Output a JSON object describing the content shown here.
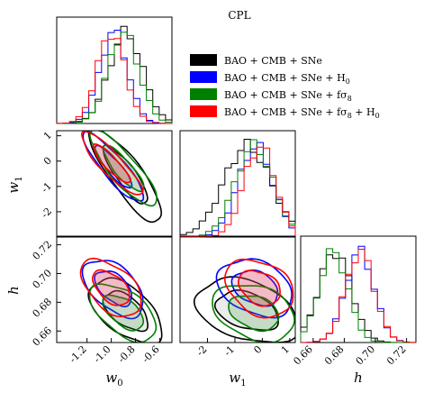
{
  "chart_data": {
    "type": "corner-plot",
    "title": "CPL",
    "parameters": [
      {
        "key": "w0",
        "label": "w0",
        "range": [
          -1.45,
          -0.5
        ],
        "ticks": [
          "-1.2",
          "-1.0",
          "-0.8",
          "-0.6"
        ],
        "tick_values": [
          -1.2,
          -1.0,
          -0.8,
          -0.6
        ]
      },
      {
        "key": "w1",
        "label": "w1",
        "range": [
          -3,
          1.2
        ],
        "ticks": [
          "-2",
          "-1",
          "0",
          "1"
        ],
        "tick_values": [
          -2,
          -1,
          0,
          1
        ]
      },
      {
        "key": "h",
        "label": "h",
        "range": [
          0.652,
          0.726
        ],
        "ticks": [
          "0.66",
          "0.68",
          "0.70",
          "0.72"
        ],
        "tick_values": [
          0.66,
          0.68,
          0.7,
          0.72
        ]
      }
    ],
    "axis_labels": {
      "w0": "w",
      "w0_sub": "0",
      "w1": "w",
      "w1_sub": "1",
      "h": "h"
    },
    "legend": {
      "placement": "top-right",
      "entries": [
        {
          "label": "BAO + CMB + SNe",
          "color": "#000000"
        },
        {
          "label": "BAO + CMB + SNe + H",
          "sub": "0",
          "color": "#0000ff"
        },
        {
          "label": "BAO + CMB + SNe + fσ",
          "sub": "8",
          "color": "#008000"
        },
        {
          "label": "BAO + CMB + SNe + fσ",
          "sub": "8",
          "extra": " + H",
          "extra_sub": "0",
          "color": "#ff0000"
        }
      ]
    },
    "series": [
      {
        "name": "BAO + CMB + SNe",
        "color": "#000000",
        "mean": {
          "w0": -0.88,
          "w1": -0.55,
          "h": 0.674
        },
        "sd": {
          "w0": 0.12,
          "w1": 0.75,
          "h": 0.009
        },
        "corr": {
          "w0_w1": -0.85,
          "w0_h": -0.55,
          "w1_h": -0.35
        },
        "fill": "#aaaaaa"
      },
      {
        "name": "BAO + CMB + SNe + H0",
        "color": "#0000ff",
        "mean": {
          "w0": -0.98,
          "w1": -0.25,
          "h": 0.69
        },
        "sd": {
          "w0": 0.1,
          "w1": 0.55,
          "h": 0.008
        },
        "corr": {
          "w0_w1": -0.88,
          "w0_h": -0.5,
          "w1_h": -0.3
        },
        "fill": "#c070c0"
      },
      {
        "name": "BAO + CMB + SNe + fσ8",
        "color": "#008000",
        "mean": {
          "w0": -0.9,
          "w1": -0.3,
          "h": 0.673
        },
        "sd": {
          "w0": 0.11,
          "w1": 0.6,
          "h": 0.008
        },
        "corr": {
          "w0_w1": -0.85,
          "w0_h": -0.55,
          "w1_h": -0.3
        },
        "fill": "#40a040"
      },
      {
        "name": "BAO + CMB + SNe + fσ8 + H0",
        "color": "#ff0000",
        "mean": {
          "w0": -1.0,
          "w1": -0.1,
          "h": 0.69
        },
        "sd": {
          "w0": 0.1,
          "w1": 0.5,
          "h": 0.008
        },
        "corr": {
          "w0_w1": -0.88,
          "w0_h": -0.5,
          "w1_h": -0.3
        },
        "fill": "#ff3030"
      }
    ],
    "grid": false
  }
}
